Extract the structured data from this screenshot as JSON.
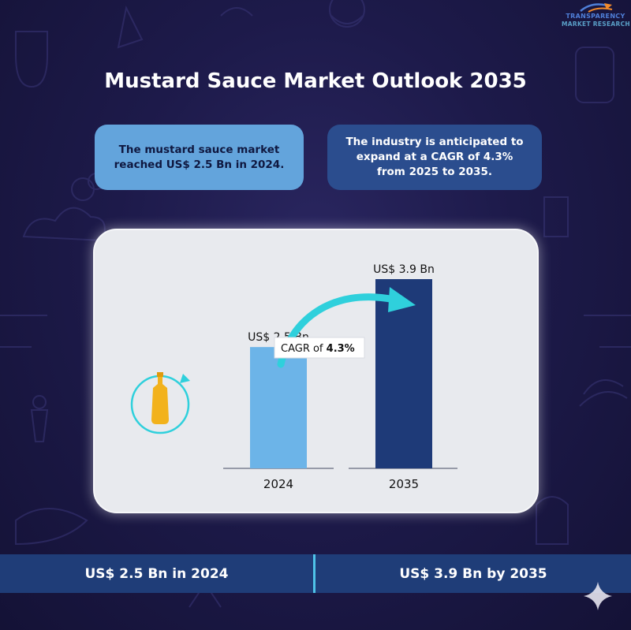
{
  "brand": {
    "logo_line1": "TRANSPARENCY",
    "logo_line2": "MARKET RESEARCH"
  },
  "title": "Mustard Sauce Market Outlook 2035",
  "callouts": {
    "left": "The mustard sauce market reached US$ 2.5 Bn in 2024.",
    "right": "The industry is anticipated to expand at a CAGR of 4.3% from 2025 to 2035."
  },
  "cagr_label": {
    "prefix": "CAGR of ",
    "value": "4.3%"
  },
  "icons": {
    "product": "mustard-bottle-icon",
    "decor": "sparkle-icon"
  },
  "colors": {
    "background": "#1d1a4a",
    "bar_2024": "#6cb4e8",
    "bar_2035": "#1e3a78",
    "arrow": "#2fd0dc",
    "callout_left": "#63a4dc",
    "callout_right": "#2b4d8e",
    "bottom_bar": "#1f3d78",
    "bottle": "#f2b21c"
  },
  "chart_data": {
    "type": "bar",
    "categories": [
      "2024",
      "2035"
    ],
    "values": [
      2.5,
      3.9
    ],
    "data_labels": [
      "US$ 2,5 Bn",
      "US$ 3.9 Bn"
    ],
    "unit": "US$ Bn",
    "title": "",
    "xlabel": "",
    "ylabel": "",
    "annotation": "CAGR of 4.3%",
    "ylim": [
      0,
      3.9
    ],
    "grid": false,
    "legend": "none"
  },
  "bottom": {
    "left": "US$ 2.5 Bn in 2024",
    "right": "US$ 3.9 Bn by 2035"
  }
}
